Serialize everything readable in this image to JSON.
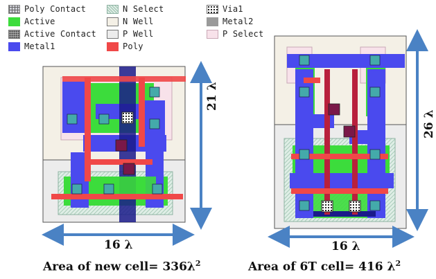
{
  "legend": [
    {
      "label": "Poly Contact",
      "fill": "#cfd0d8",
      "pattern": "contact"
    },
    {
      "label": "Active",
      "fill": "#3cdc3c",
      "pattern": "none"
    },
    {
      "label": "Active Contact",
      "fill": "#bbbbbb",
      "pattern": "dots"
    },
    {
      "label": "Metal1",
      "fill": "#4a4aee",
      "pattern": "none"
    },
    {
      "label": "N Select",
      "fill": "#dfeee6",
      "pattern": "hatch"
    },
    {
      "label": "N Well",
      "fill": "#f4f0e6",
      "pattern": "none"
    },
    {
      "label": "P Well",
      "fill": "#ececec",
      "pattern": "none"
    },
    {
      "label": "Poly",
      "fill": "#f04848",
      "pattern": "none"
    },
    {
      "label": "Via1",
      "fill": "#ffffff",
      "pattern": "checker"
    },
    {
      "label": "Metal2",
      "fill": "#9a9a9a",
      "pattern": "none"
    },
    {
      "label": "P Select",
      "fill": "#f8e2ea",
      "pattern": "none"
    }
  ],
  "left_cell": {
    "height_label": "21 λ",
    "width_label": "16 λ",
    "caption_main": "Area of new cell= 336λ",
    "caption_sup": "2"
  },
  "right_cell": {
    "height_label": "26 λ",
    "width_label": "16 λ",
    "caption_main": "Area of 6T cell= 416 λ",
    "caption_sup": "2"
  },
  "colors": {
    "arrow": "#4a82c4",
    "metal1": "#4a4aee",
    "poly": "#f04848",
    "active": "#3cdc3c",
    "nwell": "#f4f0e6",
    "pwell": "#ececec",
    "metal2": "#1a1a8a"
  }
}
